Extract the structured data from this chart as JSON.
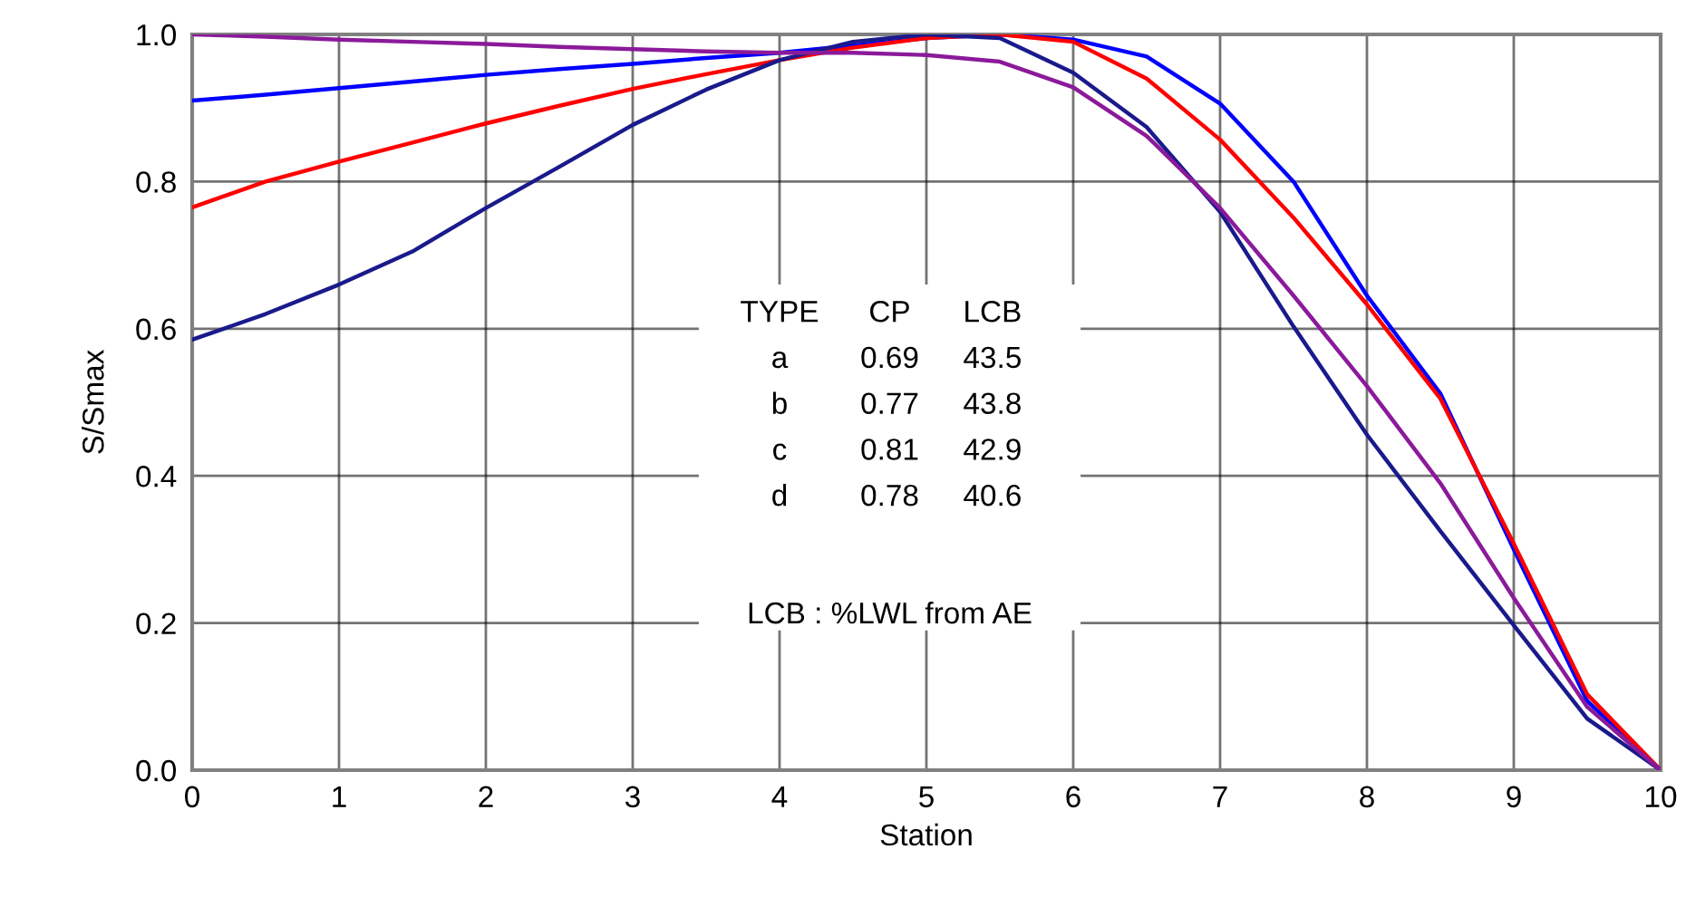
{
  "chart_data": {
    "type": "line",
    "xlabel": "Station",
    "ylabel": "S/Smax",
    "x": [
      0,
      0.5,
      1,
      1.5,
      2,
      2.5,
      3,
      3.5,
      4,
      4.5,
      5,
      5.5,
      6,
      6.5,
      7,
      7.5,
      8,
      8.5,
      9,
      9.5,
      10
    ],
    "xlim": [
      0,
      10
    ],
    "xticks": [
      0,
      1,
      2,
      3,
      4,
      5,
      6,
      7,
      8,
      9,
      10
    ],
    "ylim": [
      0,
      1
    ],
    "yticks": [
      {
        "value": 0,
        "label": "0.0"
      },
      {
        "value": 0.2,
        "label": "0.2"
      },
      {
        "value": 0.4,
        "label": "0.4"
      },
      {
        "value": 0.6,
        "label": "0.6"
      },
      {
        "value": 0.8,
        "label": "0.8"
      },
      {
        "value": 1,
        "label": "1.0"
      }
    ],
    "grid": true,
    "marker": "none",
    "line_style": "solid",
    "series": [
      {
        "color": "#0000ff",
        "values": [
          0.91,
          0.918,
          0.927,
          0.936,
          0.945,
          0.953,
          0.96,
          0.968,
          0.975,
          0.985,
          0.995,
          1.0,
          0.993,
          0.97,
          0.906,
          0.8,
          0.645,
          0.512,
          0.3,
          0.094,
          0
        ]
      },
      {
        "color": "#ff0000",
        "values": [
          0.765,
          0.8,
          0.827,
          0.853,
          0.879,
          0.903,
          0.926,
          0.946,
          0.965,
          0.982,
          0.995,
          1.0,
          0.99,
          0.94,
          0.857,
          0.751,
          0.633,
          0.505,
          0.308,
          0.103,
          0
        ]
      },
      {
        "color": "#1a1a8c",
        "values": [
          0.585,
          0.62,
          0.66,
          0.705,
          0.764,
          0.82,
          0.877,
          0.925,
          0.965,
          0.99,
          1.0,
          0.995,
          0.948,
          0.874,
          0.759,
          0.603,
          0.456,
          0.325,
          0.197,
          0.07,
          0
        ]
      },
      {
        "color": "#8b1a9a",
        "values": [
          1.0,
          0.997,
          0.993,
          0.99,
          0.987,
          0.983,
          0.98,
          0.977,
          0.975,
          0.975,
          0.972,
          0.963,
          0.928,
          0.862,
          0.764,
          0.645,
          0.522,
          0.39,
          0.234,
          0.086,
          0
        ]
      }
    ],
    "annotations": [
      "TYPE",
      "CP",
      "LCB",
      "a",
      "0.69",
      "43.5",
      "b",
      "0.77",
      "43.8",
      "c",
      "0.81",
      "42.9",
      "d",
      "0.78",
      "40.6",
      "LCB : %LWL from AE"
    ]
  }
}
